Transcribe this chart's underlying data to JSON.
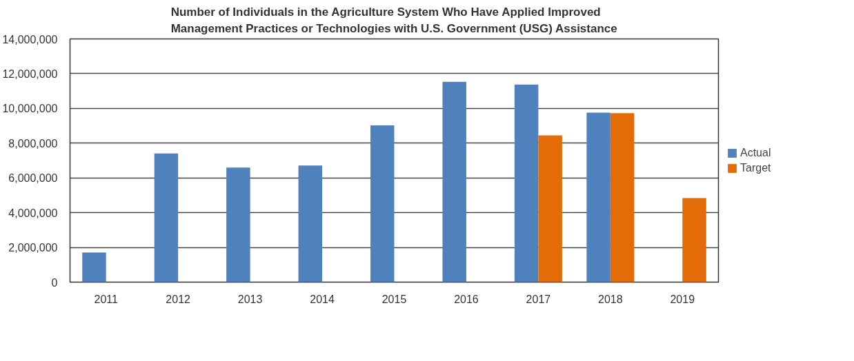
{
  "chart_data": {
    "type": "bar",
    "title": "Number of Individuals in the Agriculture System Who Have Applied Improved Management Practices or Technologies with U.S. Government (USG) Assistance",
    "categories": [
      "2011",
      "2012",
      "2013",
      "2014",
      "2015",
      "2016",
      "2017",
      "2018",
      "2019"
    ],
    "series": [
      {
        "name": "Actual",
        "color": "#4f81bd",
        "values": [
          1710000,
          7410000,
          6590000,
          6710000,
          9020000,
          11530000,
          11370000,
          9760000,
          null
        ]
      },
      {
        "name": "Target",
        "color": "#e36c09",
        "values": [
          null,
          null,
          null,
          null,
          null,
          null,
          8450000,
          9730000,
          4840000
        ]
      }
    ],
    "ylim": [
      0,
      14000000
    ],
    "yticks": [
      {
        "value": 0,
        "label": "0"
      },
      {
        "value": 2000000,
        "label": "2,000,000"
      },
      {
        "value": 4000000,
        "label": "4,000,000"
      },
      {
        "value": 6000000,
        "label": "6,000,000"
      },
      {
        "value": 8000000,
        "label": "8,000,000"
      },
      {
        "value": 10000000,
        "label": "10,000,000"
      },
      {
        "value": 12000000,
        "label": "12,000,000"
      },
      {
        "value": 14000000,
        "label": "14,000,000"
      }
    ],
    "grid": "y",
    "legend": "right"
  }
}
